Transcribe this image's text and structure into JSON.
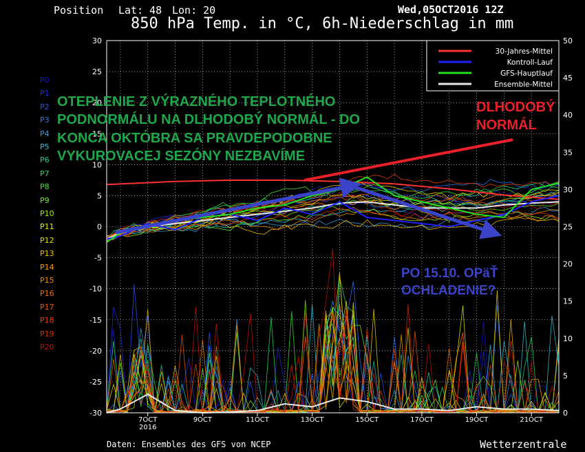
{
  "header": {
    "position_label": "Position",
    "lat_label": "Lat: 48",
    "lon_label": "Lon: 20",
    "date_label": "Wed,05OCT2016 12Z",
    "title": "850 hPa Temp. in °C, 6h-Niederschlag in mm"
  },
  "footer": {
    "source": "Daten: Ensembles des GFS von NCEP",
    "brand": "Wetterzentrale"
  },
  "annotations": {
    "main": "OTEPLENIE Z VÝRAZNÉHO TEPLOTNÉHO\nPODNORMÁLU NA DLHODOBÝ NORMÁL - DO\nKONCA OKTÓBRA SA PRAVDEPODOBNE\nVYKUROVACEJ SEZÓNY NEZBAVÍME",
    "normal": "DLHODOBÝ\nNORMÁL",
    "cooling": "PO 15.10. OPäŤ\nOCHLADENIE?",
    "main_color": "#1fa84a",
    "normal_color": "#e8202a",
    "cooling_color": "#3b44c8"
  },
  "members": [
    {
      "label": "P0",
      "color": "#1818c8"
    },
    {
      "label": "P1",
      "color": "#2030e0"
    },
    {
      "label": "P2",
      "color": "#2850ff"
    },
    {
      "label": "P3",
      "color": "#2878ff"
    },
    {
      "label": "P4",
      "color": "#30a0f0"
    },
    {
      "label": "P5",
      "color": "#30c8e0"
    },
    {
      "label": "P6",
      "color": "#20d0a0"
    },
    {
      "label": "P7",
      "color": "#20e060"
    },
    {
      "label": "P8",
      "color": "#40e830"
    },
    {
      "label": "P9",
      "color": "#70f020"
    },
    {
      "label": "P10",
      "color": "#a0f010"
    },
    {
      "label": "P11",
      "color": "#e8f000"
    },
    {
      "label": "P12",
      "color": "#f0d800"
    },
    {
      "label": "P13",
      "color": "#f8c000"
    },
    {
      "label": "P14",
      "color": "#f8a000"
    },
    {
      "label": "P15",
      "color": "#f88800"
    },
    {
      "label": "P16",
      "color": "#f87000"
    },
    {
      "label": "P17",
      "color": "#f05800"
    },
    {
      "label": "P18",
      "color": "#e84000"
    },
    {
      "label": "P19",
      "color": "#e02800"
    },
    {
      "label": "P20",
      "color": "#c81000"
    }
  ],
  "chart_data": {
    "type": "line",
    "x_unit": "date",
    "x_ticks": [
      "7OCT",
      "9OCT",
      "11OCT",
      "13OCT",
      "15OCT",
      "17OCT",
      "19OCT",
      "21OCT"
    ],
    "x_year_label": "2016",
    "y_left": {
      "range": [
        -30,
        30
      ],
      "ticks": [
        30,
        25,
        20,
        15,
        10,
        5,
        0,
        -5,
        -10,
        -15,
        -20,
        -25,
        -30
      ],
      "label": ""
    },
    "y_right": {
      "range": [
        0,
        50
      ],
      "ticks": [
        50,
        45,
        40,
        35,
        30,
        25,
        20,
        15,
        10,
        5,
        0
      ],
      "label": ""
    },
    "x_day_range": [
      5.5,
      22.0
    ],
    "grid": true,
    "legend": {
      "position": "top-right",
      "entries": [
        {
          "name": "30-Jahres-Mittel",
          "color": "#ff3030"
        },
        {
          "name": "Kontroll-Lauf",
          "color": "#2020ff"
        },
        {
          "name": "GFS-Hauptlauf",
          "color": "#20e020"
        },
        {
          "name": "Ensemble-Mittel",
          "color": "#e8e8e8"
        }
      ]
    },
    "series": [
      {
        "name": "30-Jahres-Mittel",
        "color": "#ff3030",
        "axis": "left",
        "x": [
          5.5,
          8,
          10,
          12,
          14,
          16,
          18,
          20,
          22
        ],
        "y": [
          6.8,
          7.3,
          7.5,
          7.5,
          7.3,
          6.9,
          6.1,
          5.1,
          4.4
        ]
      },
      {
        "name": "Ensemble-Mittel",
        "color": "#e8e8e8",
        "axis": "left",
        "x": [
          5.5,
          6,
          7,
          8,
          9,
          10,
          11,
          12,
          13,
          14,
          15,
          16,
          17,
          18,
          19,
          20,
          21,
          22
        ],
        "y": [
          -2,
          -1,
          0,
          0.5,
          1,
          1.5,
          2,
          2.5,
          3,
          3.8,
          4,
          3.5,
          3,
          3,
          3,
          3.5,
          3.8,
          4
        ]
      },
      {
        "name": "Kontroll-Lauf",
        "color": "#2020ff",
        "axis": "left",
        "x": [
          5.5,
          6,
          7,
          8,
          9,
          10,
          11,
          12,
          13,
          14,
          15,
          16,
          17,
          18,
          19,
          20,
          21,
          22
        ],
        "y": [
          -2,
          -1.5,
          0.5,
          -0.5,
          1.5,
          2,
          1,
          3,
          2,
          4,
          1.5,
          1,
          0.5,
          0,
          1,
          2,
          4,
          5
        ]
      },
      {
        "name": "GFS-Hauptlauf",
        "color": "#20e020",
        "axis": "left",
        "x": [
          5.5,
          6,
          7,
          8,
          9,
          10,
          11,
          12,
          13,
          14,
          15,
          16,
          17,
          18,
          19,
          20,
          21,
          22
        ],
        "y": [
          -2.5,
          -1,
          0,
          1,
          1.5,
          2,
          3,
          3.5,
          5,
          6,
          8,
          5,
          4,
          3,
          2,
          1.5,
          6,
          7
        ]
      },
      {
        "name": "Ensemble-Mittel precipitation",
        "color": "#e8e8e8",
        "axis": "right",
        "x": [
          5.5,
          6,
          7,
          8,
          9,
          10,
          11,
          12,
          13,
          14,
          15,
          16,
          17,
          18,
          19,
          20,
          21,
          22
        ],
        "y": [
          0,
          0.5,
          2.5,
          0.3,
          0,
          0.1,
          0.3,
          1.2,
          0.8,
          2,
          1.5,
          0.5,
          0.5,
          0.3,
          0.8,
          0.5,
          0.5,
          0.3
        ]
      }
    ]
  }
}
